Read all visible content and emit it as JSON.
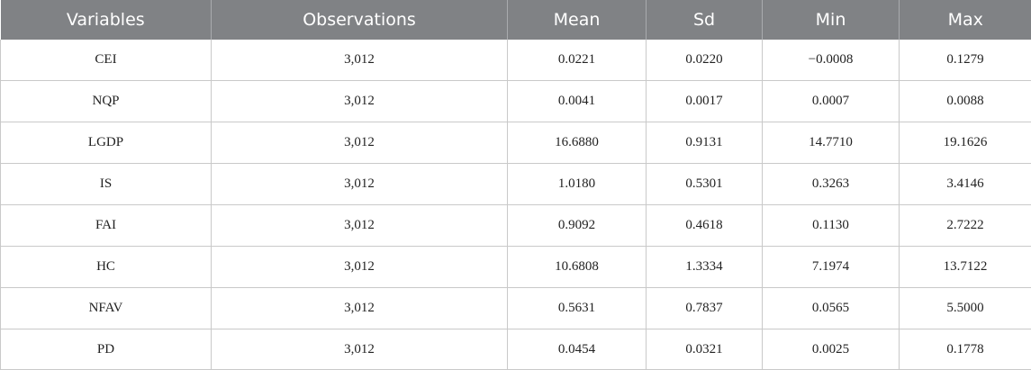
{
  "table": {
    "headers": [
      "Variables",
      "Observations",
      "Mean",
      "Sd",
      "Min",
      "Max"
    ],
    "rows": [
      [
        "CEI",
        "3,012",
        "0.0221",
        "0.0220",
        "−0.0008",
        "0.1279"
      ],
      [
        "NQP",
        "3,012",
        "0.0041",
        "0.0017",
        "0.0007",
        "0.0088"
      ],
      [
        "LGDP",
        "3,012",
        "16.6880",
        "0.9131",
        "14.7710",
        "19.1626"
      ],
      [
        "IS",
        "3,012",
        "1.0180",
        "0.5301",
        "0.3263",
        "3.4146"
      ],
      [
        "FAI",
        "3,012",
        "0.9092",
        "0.4618",
        "0.1130",
        "2.7222"
      ],
      [
        "HC",
        "3,012",
        "10.6808",
        "1.3334",
        "7.1974",
        "13.7122"
      ],
      [
        "NFAV",
        "3,012",
        "0.5631",
        "0.7837",
        "0.0565",
        "5.5000"
      ],
      [
        "PD",
        "3,012",
        "0.0454",
        "0.0321",
        "0.0025",
        "0.1778"
      ]
    ]
  }
}
